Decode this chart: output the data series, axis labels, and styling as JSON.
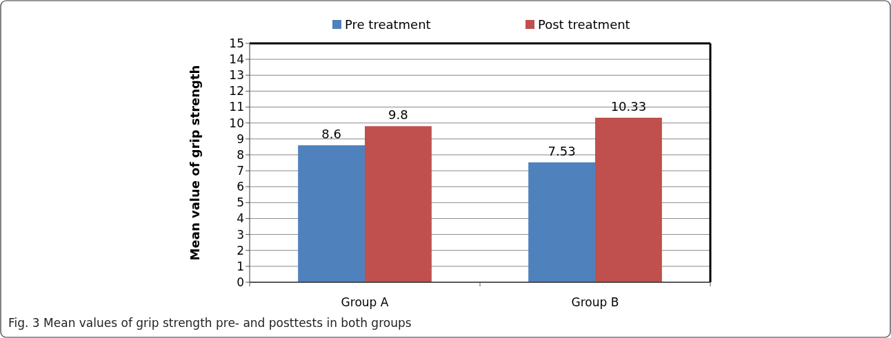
{
  "chart_data": {
    "type": "bar",
    "ylabel": "Mean value of grip strength",
    "categories": [
      "Group A",
      "Group B"
    ],
    "series": [
      {
        "name": "Pre treatment",
        "color": "#4f81bd",
        "values": [
          8.6,
          7.53
        ]
      },
      {
        "name": "Post treatment",
        "color": "#c0504d",
        "values": [
          9.8,
          10.33
        ]
      }
    ],
    "ylim": [
      0,
      15
    ],
    "yticks": [
      0,
      1,
      2,
      3,
      4,
      5,
      6,
      7,
      8,
      9,
      10,
      11,
      12,
      13,
      14,
      15
    ],
    "grid": "y",
    "legend": "top",
    "data_labels": true,
    "annotations": [
      "Fig. 3 Mean values of grip strength pre- and posttests in both groups"
    ]
  }
}
